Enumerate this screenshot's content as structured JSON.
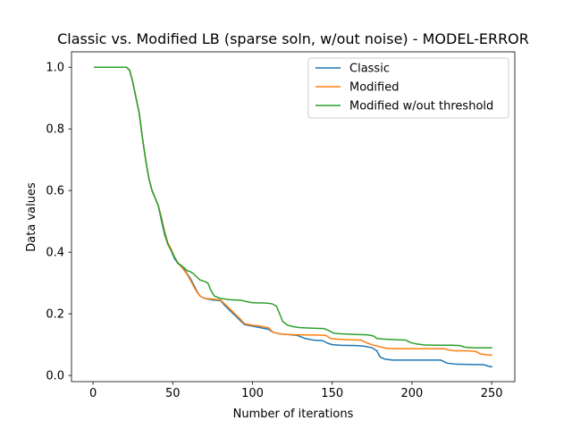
{
  "chart_data": {
    "type": "line",
    "title": "Classic vs. Modified LB (sparse soln, w/out noise) - MODEL-ERROR",
    "xlabel": "Number of iterations",
    "ylabel": "Data values",
    "xlim": [
      -13.5,
      264.5
    ],
    "ylim": [
      -0.02,
      1.05
    ],
    "xticks": [
      0,
      50,
      100,
      150,
      200,
      250
    ],
    "xtick_labels": [
      "0",
      "50",
      "100",
      "150",
      "200",
      "250"
    ],
    "yticks": [
      0.0,
      0.2,
      0.4,
      0.6,
      0.8,
      1.0
    ],
    "ytick_labels": [
      "0.0",
      "0.2",
      "0.4",
      "0.6",
      "0.8",
      "1.0"
    ],
    "grid": false,
    "legend_position": "top-right",
    "colors": {
      "Classic": "#1f77b4",
      "Modified": "#ff7f0e",
      "Modified w/out threshold": "#2ca02c"
    },
    "series": [
      {
        "name": "Classic",
        "points": [
          [
            1,
            1.0
          ],
          [
            21,
            1.0
          ],
          [
            23,
            0.99
          ],
          [
            25,
            0.95
          ],
          [
            27,
            0.9
          ],
          [
            29,
            0.85
          ],
          [
            31,
            0.77
          ],
          [
            33,
            0.7
          ],
          [
            35,
            0.64
          ],
          [
            37,
            0.6
          ],
          [
            39,
            0.575
          ],
          [
            41,
            0.55
          ],
          [
            43,
            0.5
          ],
          [
            45,
            0.455
          ],
          [
            47,
            0.425
          ],
          [
            49,
            0.405
          ],
          [
            51,
            0.38
          ],
          [
            53,
            0.365
          ],
          [
            55,
            0.355
          ],
          [
            57,
            0.345
          ],
          [
            59,
            0.33
          ],
          [
            61,
            0.315
          ],
          [
            63,
            0.295
          ],
          [
            65,
            0.275
          ],
          [
            67,
            0.258
          ],
          [
            70,
            0.25
          ],
          [
            75,
            0.245
          ],
          [
            80,
            0.243
          ],
          [
            83,
            0.225
          ],
          [
            86,
            0.21
          ],
          [
            89,
            0.195
          ],
          [
            92,
            0.18
          ],
          [
            95,
            0.165
          ],
          [
            100,
            0.16
          ],
          [
            105,
            0.155
          ],
          [
            110,
            0.15
          ],
          [
            113,
            0.14
          ],
          [
            117,
            0.135
          ],
          [
            122,
            0.133
          ],
          [
            128,
            0.13
          ],
          [
            133,
            0.12
          ],
          [
            138,
            0.115
          ],
          [
            144,
            0.113
          ],
          [
            147,
            0.105
          ],
          [
            150,
            0.1
          ],
          [
            155,
            0.098
          ],
          [
            165,
            0.097
          ],
          [
            170,
            0.095
          ],
          [
            175,
            0.09
          ],
          [
            178,
            0.08
          ],
          [
            180,
            0.06
          ],
          [
            183,
            0.053
          ],
          [
            188,
            0.05
          ],
          [
            200,
            0.05
          ],
          [
            218,
            0.05
          ],
          [
            222,
            0.04
          ],
          [
            227,
            0.037
          ],
          [
            235,
            0.036
          ],
          [
            245,
            0.035
          ],
          [
            248,
            0.03
          ],
          [
            250,
            0.028
          ]
        ]
      },
      {
        "name": "Modified",
        "points": [
          [
            1,
            1.0
          ],
          [
            21,
            1.0
          ],
          [
            23,
            0.99
          ],
          [
            25,
            0.95
          ],
          [
            27,
            0.9
          ],
          [
            29,
            0.85
          ],
          [
            31,
            0.77
          ],
          [
            33,
            0.7
          ],
          [
            35,
            0.64
          ],
          [
            37,
            0.6
          ],
          [
            39,
            0.575
          ],
          [
            41,
            0.55
          ],
          [
            43,
            0.51
          ],
          [
            45,
            0.465
          ],
          [
            47,
            0.43
          ],
          [
            49,
            0.41
          ],
          [
            51,
            0.385
          ],
          [
            53,
            0.368
          ],
          [
            55,
            0.355
          ],
          [
            57,
            0.342
          ],
          [
            59,
            0.328
          ],
          [
            61,
            0.31
          ],
          [
            63,
            0.29
          ],
          [
            65,
            0.272
          ],
          [
            67,
            0.258
          ],
          [
            70,
            0.25
          ],
          [
            75,
            0.248
          ],
          [
            80,
            0.245
          ],
          [
            83,
            0.23
          ],
          [
            86,
            0.215
          ],
          [
            89,
            0.2
          ],
          [
            92,
            0.185
          ],
          [
            95,
            0.168
          ],
          [
            100,
            0.163
          ],
          [
            105,
            0.16
          ],
          [
            110,
            0.155
          ],
          [
            113,
            0.14
          ],
          [
            117,
            0.135
          ],
          [
            122,
            0.133
          ],
          [
            128,
            0.132
          ],
          [
            140,
            0.131
          ],
          [
            146,
            0.13
          ],
          [
            149,
            0.12
          ],
          [
            153,
            0.118
          ],
          [
            160,
            0.116
          ],
          [
            168,
            0.115
          ],
          [
            172,
            0.105
          ],
          [
            176,
            0.098
          ],
          [
            180,
            0.093
          ],
          [
            184,
            0.088
          ],
          [
            188,
            0.087
          ],
          [
            195,
            0.087
          ],
          [
            205,
            0.087
          ],
          [
            213,
            0.087
          ],
          [
            220,
            0.087
          ],
          [
            223,
            0.083
          ],
          [
            227,
            0.08
          ],
          [
            235,
            0.08
          ],
          [
            240,
            0.078
          ],
          [
            243,
            0.07
          ],
          [
            247,
            0.067
          ],
          [
            250,
            0.066
          ]
        ]
      },
      {
        "name": "Modified w/out threshold",
        "points": [
          [
            1,
            1.0
          ],
          [
            21,
            1.0
          ],
          [
            23,
            0.99
          ],
          [
            25,
            0.95
          ],
          [
            27,
            0.9
          ],
          [
            29,
            0.85
          ],
          [
            31,
            0.77
          ],
          [
            33,
            0.7
          ],
          [
            35,
            0.64
          ],
          [
            37,
            0.6
          ],
          [
            39,
            0.575
          ],
          [
            41,
            0.55
          ],
          [
            43,
            0.505
          ],
          [
            45,
            0.46
          ],
          [
            47,
            0.425
          ],
          [
            49,
            0.405
          ],
          [
            51,
            0.385
          ],
          [
            53,
            0.365
          ],
          [
            55,
            0.358
          ],
          [
            57,
            0.35
          ],
          [
            59,
            0.34
          ],
          [
            61,
            0.337
          ],
          [
            63,
            0.33
          ],
          [
            65,
            0.32
          ],
          [
            67,
            0.31
          ],
          [
            70,
            0.305
          ],
          [
            72,
            0.3
          ],
          [
            74,
            0.275
          ],
          [
            76,
            0.258
          ],
          [
            80,
            0.25
          ],
          [
            85,
            0.246
          ],
          [
            93,
            0.244
          ],
          [
            96,
            0.24
          ],
          [
            100,
            0.236
          ],
          [
            108,
            0.235
          ],
          [
            112,
            0.233
          ],
          [
            115,
            0.225
          ],
          [
            117,
            0.2
          ],
          [
            119,
            0.175
          ],
          [
            122,
            0.163
          ],
          [
            126,
            0.158
          ],
          [
            130,
            0.155
          ],
          [
            140,
            0.153
          ],
          [
            145,
            0.152
          ],
          [
            148,
            0.145
          ],
          [
            151,
            0.137
          ],
          [
            156,
            0.135
          ],
          [
            165,
            0.133
          ],
          [
            172,
            0.132
          ],
          [
            176,
            0.128
          ],
          [
            178,
            0.12
          ],
          [
            182,
            0.118
          ],
          [
            190,
            0.116
          ],
          [
            196,
            0.115
          ],
          [
            199,
            0.107
          ],
          [
            203,
            0.102
          ],
          [
            208,
            0.099
          ],
          [
            215,
            0.098
          ],
          [
            225,
            0.098
          ],
          [
            230,
            0.097
          ],
          [
            233,
            0.092
          ],
          [
            238,
            0.09
          ],
          [
            245,
            0.09
          ],
          [
            250,
            0.09
          ]
        ]
      }
    ]
  }
}
